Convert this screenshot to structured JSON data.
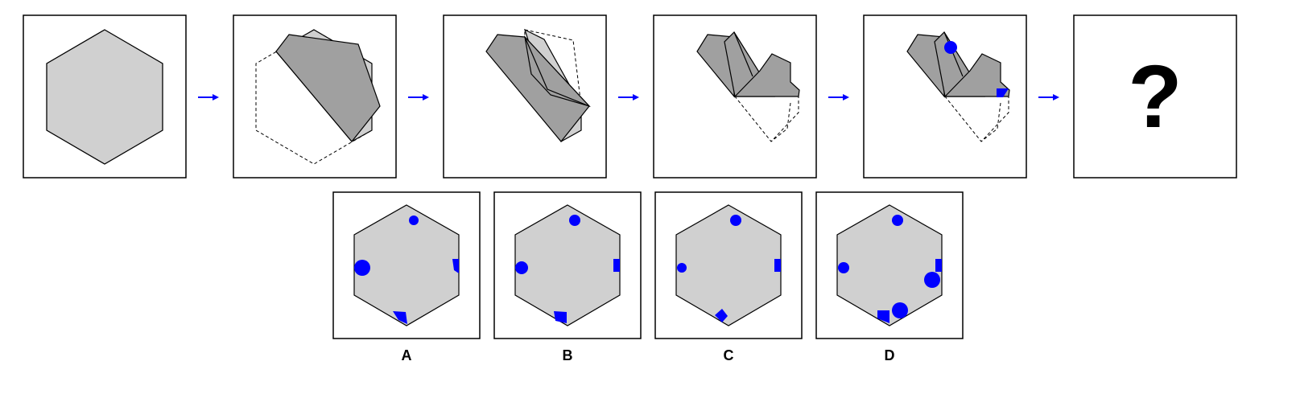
{
  "question_mark": "?",
  "options": [
    {
      "label": "A"
    },
    {
      "label": "B"
    },
    {
      "label": "C"
    },
    {
      "label": "D"
    }
  ],
  "colors": {
    "hexagon_fill": "#d0d0d0",
    "fold_fill": "#a0a0a0",
    "punch": "#0000ff",
    "arrow": "#0000ff",
    "stroke": "#000000"
  },
  "icons": [
    "arrow-right-icon",
    "question-mark-icon",
    "circle-punch-icon",
    "square-punch-icon"
  ]
}
